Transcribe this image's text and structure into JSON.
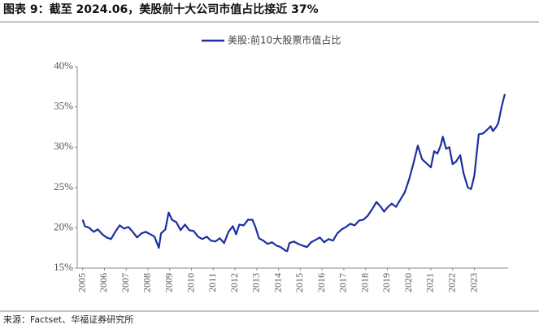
{
  "chart_data": {
    "type": "line",
    "title": "图表 9：截至 2024.06，美股前十大公司市值占比接近 37%",
    "source": "来源：Factset、华福证券研究所",
    "x": [
      2005.0,
      2005.1,
      2005.3,
      2005.5,
      2005.7,
      2005.9,
      2006.1,
      2006.3,
      2006.5,
      2006.7,
      2006.9,
      2007.1,
      2007.3,
      2007.5,
      2007.7,
      2007.9,
      2008.1,
      2008.3,
      2008.5,
      2008.6,
      2008.8,
      2008.95,
      2009.1,
      2009.3,
      2009.5,
      2009.7,
      2009.9,
      2010.1,
      2010.3,
      2010.5,
      2010.7,
      2010.9,
      2011.1,
      2011.3,
      2011.5,
      2011.7,
      2011.9,
      2012.05,
      2012.2,
      2012.4,
      2012.6,
      2012.8,
      2012.95,
      2013.1,
      2013.3,
      2013.5,
      2013.7,
      2013.9,
      2014.1,
      2014.3,
      2014.4,
      2014.5,
      2014.7,
      2014.9,
      2015.1,
      2015.3,
      2015.5,
      2015.7,
      2015.9,
      2016.1,
      2016.3,
      2016.5,
      2016.7,
      2016.9,
      2017.1,
      2017.3,
      2017.5,
      2017.7,
      2017.9,
      2018.1,
      2018.3,
      2018.5,
      2018.7,
      2018.85,
      2019.0,
      2019.2,
      2019.4,
      2019.6,
      2019.8,
      2020.0,
      2020.2,
      2020.4,
      2020.6,
      2020.8,
      2021.0,
      2021.15,
      2021.3,
      2021.45,
      2021.55,
      2021.7,
      2021.85,
      2022.0,
      2022.15,
      2022.35,
      2022.5,
      2022.7,
      2022.85,
      2023.0,
      2023.2,
      2023.4,
      2023.6,
      2023.75,
      2023.85,
      2024.0,
      2024.1,
      2024.25,
      2024.4
    ],
    "series": [
      {
        "name": "美股:前10大股票市值占比",
        "color": "#1a2fa0",
        "values": [
          21.0,
          20.2,
          20.0,
          19.5,
          19.8,
          19.2,
          18.8,
          18.6,
          19.5,
          20.3,
          19.9,
          20.1,
          19.5,
          18.8,
          19.3,
          19.5,
          19.2,
          18.9,
          17.5,
          19.3,
          19.8,
          21.9,
          21.0,
          20.7,
          19.7,
          20.4,
          19.7,
          19.6,
          18.9,
          18.6,
          18.9,
          18.4,
          18.3,
          18.7,
          18.1,
          19.5,
          20.2,
          19.2,
          20.4,
          20.3,
          21.0,
          21.0,
          20.0,
          18.7,
          18.4,
          18.0,
          18.2,
          17.8,
          17.6,
          17.2,
          17.1,
          18.1,
          18.3,
          18.0,
          17.8,
          17.6,
          18.2,
          18.5,
          18.8,
          18.2,
          18.6,
          18.4,
          19.3,
          19.8,
          20.1,
          20.5,
          20.3,
          20.9,
          21.0,
          21.5,
          22.3,
          23.2,
          22.6,
          22.0,
          22.5,
          23.0,
          22.6,
          23.5,
          24.4,
          26.0,
          28.0,
          30.2,
          28.5,
          28.0,
          27.5,
          29.5,
          29.2,
          30.2,
          31.3,
          29.8,
          30.0,
          27.9,
          28.2,
          29.0,
          26.8,
          25.0,
          24.8,
          26.5,
          31.6,
          31.7,
          32.2,
          32.6,
          32.0,
          32.5,
          33.0,
          35.0,
          36.6
        ]
      }
    ],
    "xlim": [
      2004.75,
      2024.55
    ],
    "xticks": [
      2005,
      2006,
      2007,
      2008,
      2009,
      2010,
      2011,
      2012,
      2013,
      2014,
      2015,
      2016,
      2017,
      2018,
      2019,
      2020,
      2021,
      2022,
      2023
    ],
    "ylim": [
      15,
      40
    ],
    "yticks": [
      {
        "value": 15,
        "label": "15%"
      },
      {
        "value": 20,
        "label": "20%"
      },
      {
        "value": 25,
        "label": "25%"
      },
      {
        "value": 30,
        "label": "30%"
      },
      {
        "value": 35,
        "label": "35%"
      },
      {
        "value": 40,
        "label": "40%"
      }
    ],
    "grid": false,
    "legend": "top"
  }
}
